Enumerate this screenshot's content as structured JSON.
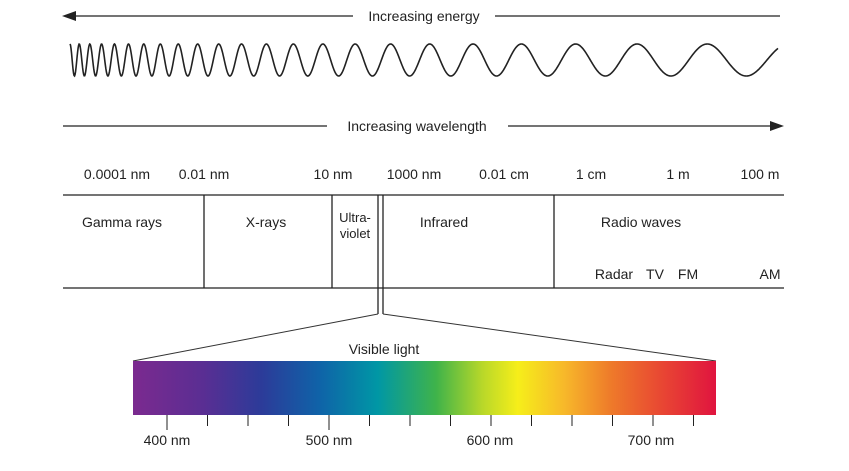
{
  "energy_arrow": {
    "label": "Increasing energy",
    "direction": "left"
  },
  "wavelength_arrow": {
    "label": "Increasing wavelength",
    "direction": "right"
  },
  "scale_labels": [
    "0.0001 nm",
    "0.01 nm",
    "10 nm",
    "1000 nm",
    "0.01 cm",
    "1 cm",
    "1 m",
    "100 m"
  ],
  "bands": {
    "gamma": "Gamma rays",
    "xray": "X-rays",
    "uv_line1": "Ultra-",
    "uv_line2": "violet",
    "infrared": "Infrared",
    "radio": "Radio waves"
  },
  "radio_sub": [
    "Radar",
    "TV",
    "FM",
    "AM"
  ],
  "visible": {
    "title": "Visible light",
    "ticks": [
      "400 nm",
      "500 nm",
      "600 nm",
      "700 nm"
    ]
  },
  "colors": {
    "violet": "#7b2a91",
    "blue": "#1f3fa0",
    "cyan": "#0097a5",
    "green": "#3fb34a",
    "yellow": "#f6ee1a",
    "orange": "#f0902a",
    "red": "#e01f3d"
  }
}
